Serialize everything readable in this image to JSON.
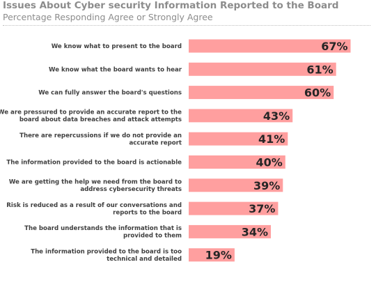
{
  "title": "Issues About Cyber security Information Reported to the Board",
  "subtitle": "Percentage Responding Agree or Strongly Agree",
  "colors": {
    "bar": "#ff9f9f",
    "title": "#8c8c8c"
  },
  "chart_data": {
    "type": "bar",
    "orientation": "horizontal",
    "title": "Issues About Cyber security Information Reported to the Board",
    "subtitle": "Percentage Responding Agree or Strongly Agree",
    "xlabel": "",
    "ylabel": "",
    "value_suffix": "%",
    "xlim": [
      0,
      100
    ],
    "grid": false,
    "legend": "none",
    "categories": [
      [
        "We know what to present to the board"
      ],
      [
        "We know what the board wants to hear"
      ],
      [
        "We can fully answer the board's questions"
      ],
      [
        "We are pressured to provide an accurate report to the",
        "board about data breaches and attack attempts"
      ],
      [
        "There are repercussions if we do not provide an",
        "accurate report"
      ],
      [
        "The information provided to the board is actionable"
      ],
      [
        "We are getting the help we need from the board to",
        "address cybersecurity threats"
      ],
      [
        "Risk is reduced as a result of our conversations and",
        "reports to the board"
      ],
      [
        "The board understands the information that is",
        "provided to them"
      ],
      [
        "The information provided to the board is too",
        "technical and detailed"
      ]
    ],
    "values": [
      67,
      61,
      60,
      43,
      41,
      40,
      39,
      37,
      34,
      19
    ],
    "labels": [
      "67%",
      "61%",
      "60%",
      "43%",
      "41%",
      "40%",
      "39%",
      "37%",
      "34%",
      "19%"
    ]
  }
}
